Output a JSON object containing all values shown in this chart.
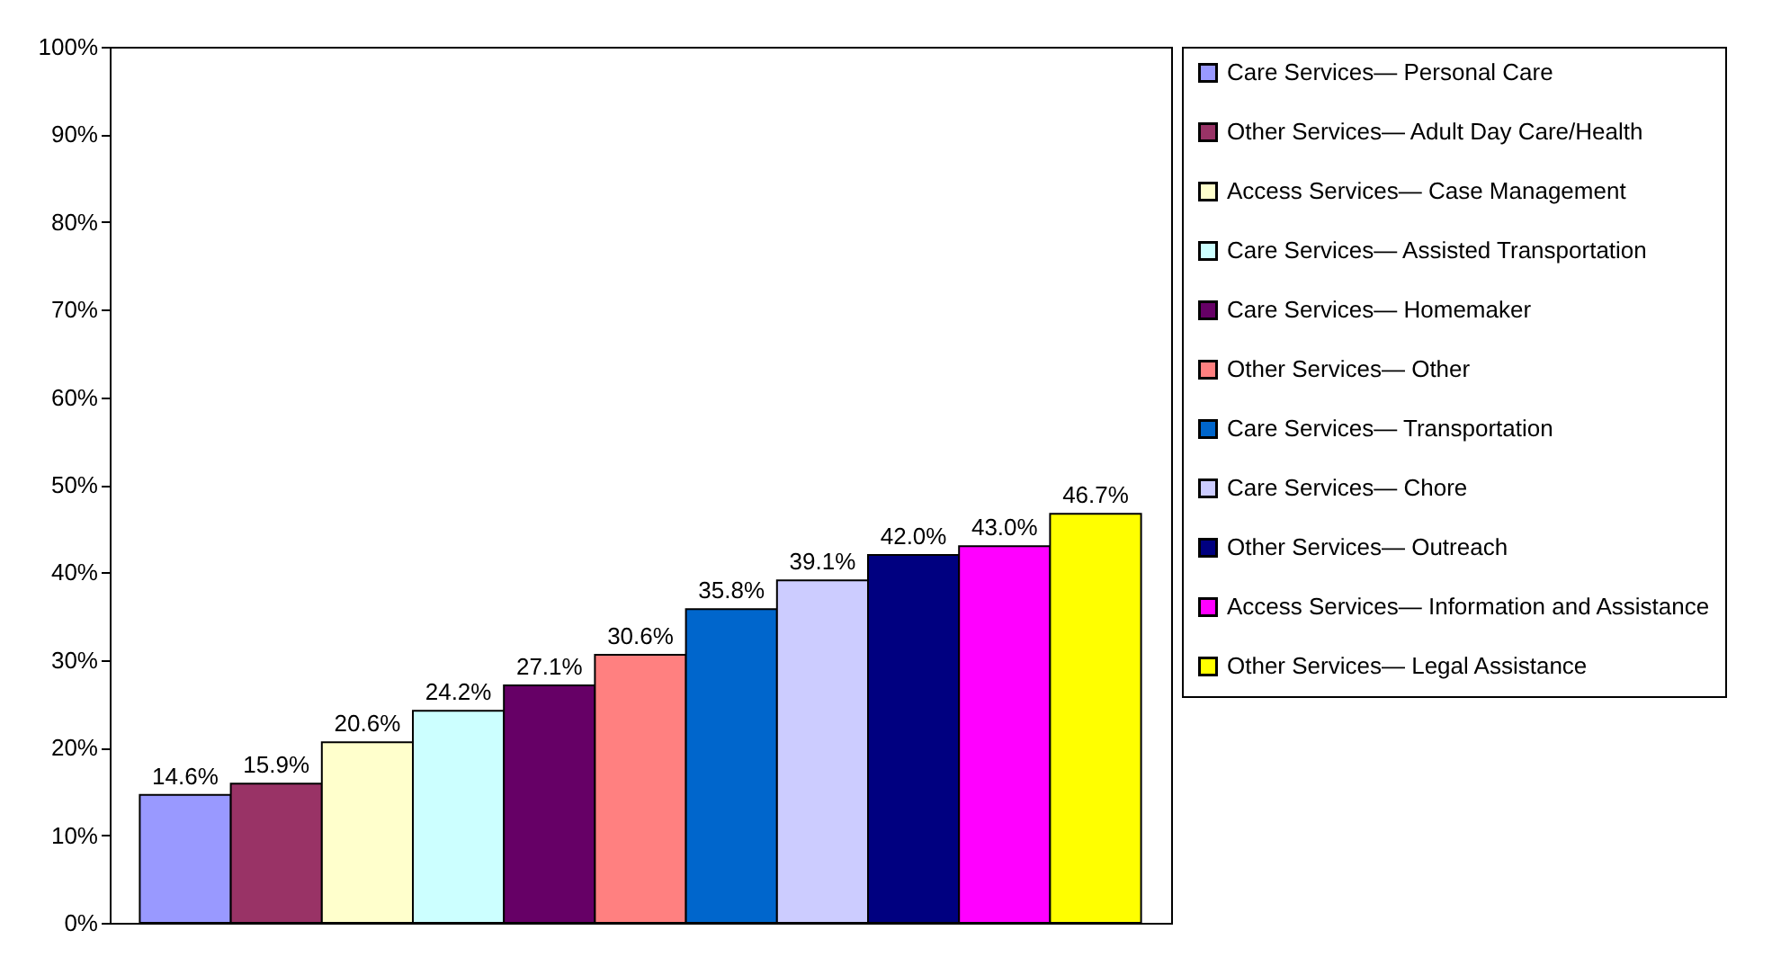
{
  "chart_data": {
    "type": "bar",
    "categories": [
      null
    ],
    "legend": "right",
    "tick_labels": "y",
    "ylim": [
      0,
      100
    ],
    "yticks": [
      {
        "value": 0,
        "label": "0%"
      },
      {
        "value": 10,
        "label": "10%"
      },
      {
        "value": 20,
        "label": "20%"
      },
      {
        "value": 30,
        "label": "30%"
      },
      {
        "value": 40,
        "label": "40%"
      },
      {
        "value": 50,
        "label": "50%"
      },
      {
        "value": 60,
        "label": "60%"
      },
      {
        "value": 70,
        "label": "70%"
      },
      {
        "value": 80,
        "label": "80%"
      },
      {
        "value": 90,
        "label": "90%"
      },
      {
        "value": 100,
        "label": "100%"
      }
    ],
    "series": [
      {
        "name": "Care Services— Personal Care",
        "color": "#9999ff",
        "values": [
          14.6
        ],
        "value_labels": [
          "14.6%"
        ]
      },
      {
        "name": "Other Services— Adult Day Care/Health",
        "color": "#993366",
        "values": [
          15.9
        ],
        "value_labels": [
          "15.9%"
        ]
      },
      {
        "name": "Access Services— Case Management",
        "color": "#ffffcc",
        "values": [
          20.6
        ],
        "value_labels": [
          "20.6%"
        ]
      },
      {
        "name": "Care Services— Assisted Transportation",
        "color": "#ccffff",
        "values": [
          24.2
        ],
        "value_labels": [
          "24.2%"
        ]
      },
      {
        "name": "Care Services— Homemaker",
        "color": "#660066",
        "values": [
          27.1
        ],
        "value_labels": [
          "27.1%"
        ]
      },
      {
        "name": "Other Services— Other",
        "color": "#ff8080",
        "values": [
          30.6
        ],
        "value_labels": [
          "30.6%"
        ]
      },
      {
        "name": "Care Services— Transportation",
        "color": "#0066cc",
        "values": [
          35.8
        ],
        "value_labels": [
          "35.8%"
        ]
      },
      {
        "name": "Care Services— Chore",
        "color": "#ccccff",
        "values": [
          39.1
        ],
        "value_labels": [
          "39.1%"
        ]
      },
      {
        "name": "Other Services— Outreach",
        "color": "#000080",
        "values": [
          42.0
        ],
        "value_labels": [
          "42.0%"
        ]
      },
      {
        "name": "Access Services— Information and Assistance",
        "color": "#ff00ff",
        "values": [
          43.0
        ],
        "value_labels": [
          "43.0%"
        ]
      },
      {
        "name": "Other Services— Legal Assistance",
        "color": "#ffff00",
        "values": [
          46.7
        ],
        "value_labels": [
          "46.7%"
        ]
      }
    ]
  }
}
